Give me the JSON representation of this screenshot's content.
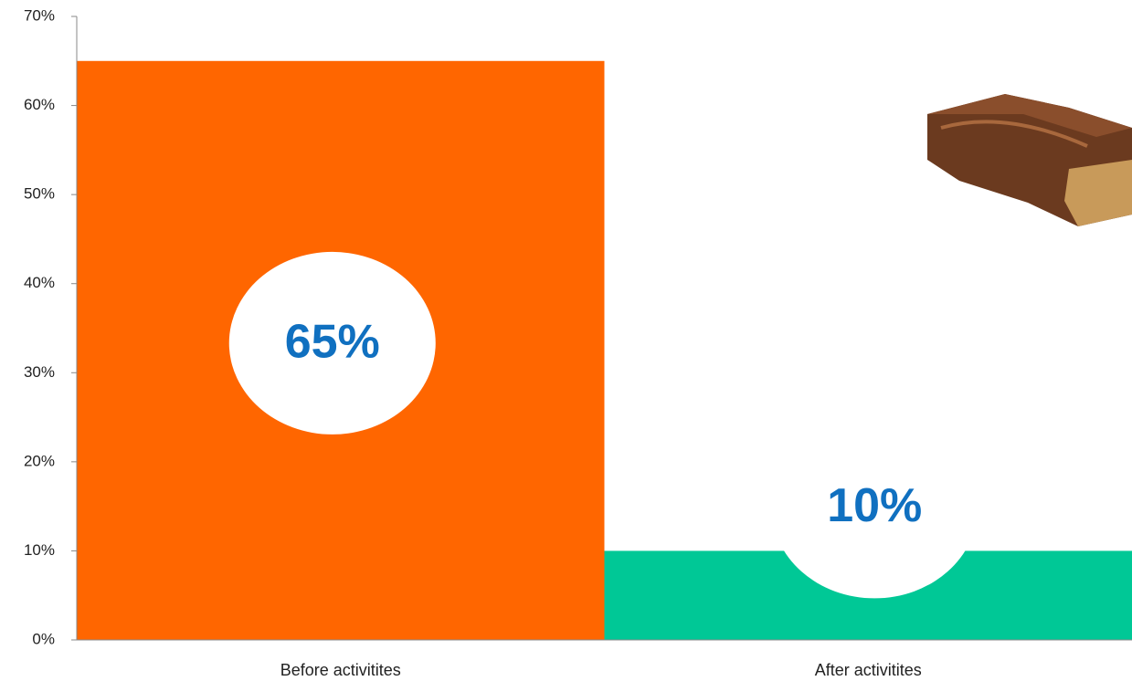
{
  "chart_data": {
    "type": "bar",
    "categories": [
      "Before activitites",
      "After activitites"
    ],
    "values": [
      65,
      10
    ],
    "value_labels": [
      "65%",
      "10%"
    ],
    "colors": [
      "#ff6600",
      "#00c896"
    ],
    "ylim": [
      0,
      70
    ],
    "yticks": [
      {
        "value": 0,
        "label": "0%"
      },
      {
        "value": 10,
        "label": "10%"
      },
      {
        "value": 20,
        "label": "20%"
      },
      {
        "value": 30,
        "label": "30%"
      },
      {
        "value": 40,
        "label": "40%"
      },
      {
        "value": 50,
        "label": "50%"
      },
      {
        "value": 60,
        "label": "60%"
      },
      {
        "value": 70,
        "label": "70%"
      }
    ]
  }
}
